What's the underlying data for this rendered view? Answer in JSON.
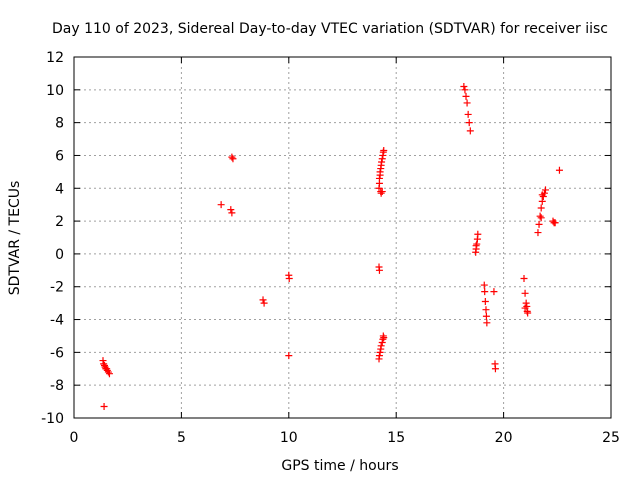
{
  "chart_data": {
    "type": "scatter",
    "title": "Day 110 of 2023, Sidereal Day-to-day VTEC variation (SDTVAR) for receiver iisc",
    "xlabel": "GPS time / hours",
    "ylabel": "SDTVAR / TECUs",
    "xlim": [
      0,
      25
    ],
    "ylim": [
      -10,
      12
    ],
    "xticks": [
      0,
      5,
      10,
      15,
      20,
      25
    ],
    "yticks": [
      -10,
      -8,
      -6,
      -4,
      -2,
      0,
      2,
      4,
      6,
      8,
      10,
      12
    ],
    "x_tick_labels": [
      "0",
      "5",
      "10",
      "15",
      "20",
      "25"
    ],
    "y_tick_labels": [
      "-10",
      "-8",
      "-6",
      "-4",
      "-2",
      "0",
      "2",
      "4",
      "6",
      "8",
      "10",
      "12"
    ],
    "grid": true,
    "marker": "+",
    "marker_color": "#ff0000",
    "series": [
      {
        "name": "SDTVAR",
        "x": [
          1.35,
          1.38,
          1.42,
          1.45,
          1.48,
          1.52,
          1.55,
          1.6,
          1.65,
          1.4,
          6.85,
          7.35,
          7.4,
          7.3,
          7.35,
          8.8,
          8.85,
          10.0,
          10.02,
          10.0,
          14.2,
          14.22,
          14.22,
          14.25,
          14.25,
          14.28,
          14.3,
          14.32,
          14.35,
          14.38,
          14.4,
          14.42,
          14.28,
          14.3,
          14.35,
          14.2,
          14.22,
          14.2,
          14.22,
          14.25,
          14.28,
          14.3,
          14.35,
          14.38,
          14.4,
          14.42,
          18.15,
          18.2,
          18.25,
          18.3,
          18.35,
          18.4,
          18.45,
          18.7,
          18.72,
          18.75,
          18.78,
          18.8,
          18.72,
          19.1,
          19.12,
          19.15,
          19.18,
          19.2,
          19.22,
          19.55,
          19.6,
          19.62,
          20.95,
          21.0,
          21.05,
          21.08,
          21.1,
          21.12,
          21.0,
          21.6,
          21.65,
          21.7,
          21.75,
          21.8,
          21.85,
          21.9,
          21.95,
          21.8,
          21.75,
          22.3,
          22.35,
          22.4,
          22.6
        ],
        "y": [
          -6.5,
          -6.7,
          -6.8,
          -6.9,
          -7.0,
          -7.0,
          -7.1,
          -7.2,
          -7.3,
          -9.3,
          3.0,
          5.9,
          5.8,
          2.7,
          2.5,
          -2.8,
          -3.0,
          -1.3,
          -1.5,
          -6.2,
          4.0,
          4.3,
          4.6,
          4.8,
          5.0,
          5.2,
          5.4,
          5.6,
          5.8,
          6.0,
          6.2,
          6.3,
          3.8,
          3.7,
          3.8,
          -0.8,
          -1.0,
          -6.4,
          -6.2,
          -6.0,
          -5.8,
          -5.6,
          -5.4,
          -5.2,
          -5.0,
          -5.1,
          10.2,
          10.0,
          9.6,
          9.2,
          8.5,
          8.0,
          7.5,
          0.1,
          0.3,
          0.6,
          0.9,
          1.2,
          0.5,
          -1.9,
          -2.3,
          -2.9,
          -3.4,
          -3.8,
          -4.2,
          -2.3,
          -6.7,
          -7.0,
          -1.5,
          -2.4,
          -3.0,
          -3.2,
          -3.5,
          -3.6,
          -3.3,
          1.3,
          1.8,
          2.3,
          2.8,
          3.2,
          3.5,
          3.7,
          3.9,
          3.6,
          2.2,
          2.0,
          1.9,
          1.9,
          5.1
        ]
      }
    ]
  }
}
